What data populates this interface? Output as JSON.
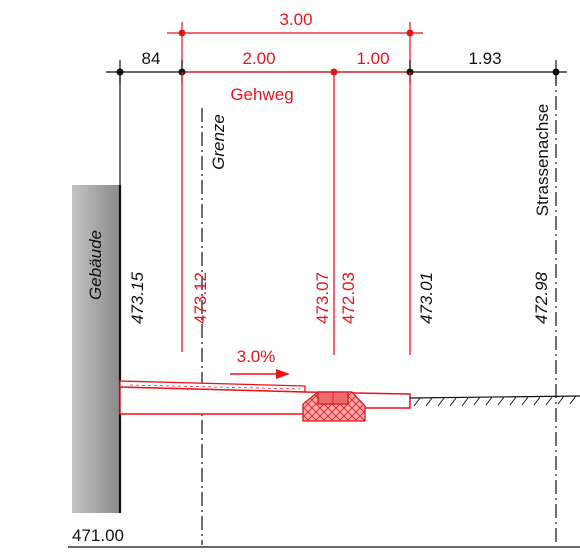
{
  "colors": {
    "red": "#e8141c",
    "black": "#111111",
    "hatch_fill": "#f0a9aa",
    "building_fill": "#b0b0b0"
  },
  "dims": {
    "total": "3.00",
    "offset_left": "84",
    "sidewalk": "2.00",
    "curb_zone": "1.00",
    "to_axis": "1.93"
  },
  "labels": {
    "sidewalk": "Gehweg",
    "boundary": "Grenze",
    "axis": "Strassenachse",
    "building": "Gebäude",
    "slope": "3.0%"
  },
  "elevations": {
    "building": "473.15",
    "boundary": "473.12",
    "curb_top": "473.07",
    "curb_bottom": "472.03",
    "road_edge": "473.01",
    "axis": "472.98",
    "datum": "471.00"
  }
}
